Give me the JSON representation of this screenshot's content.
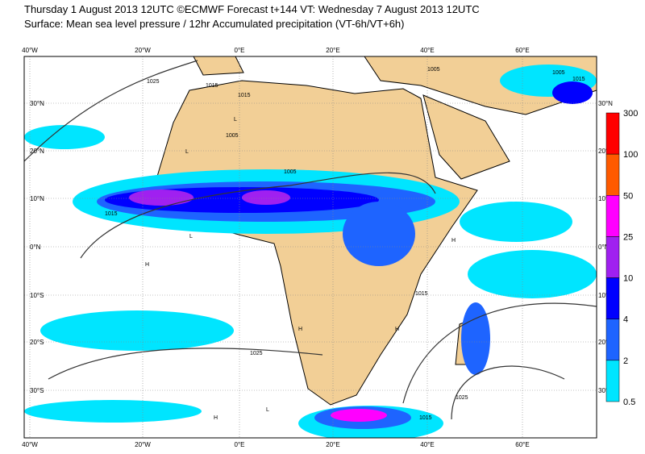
{
  "header": {
    "line1": "Thursday 1 August 2013 12UTC ©ECMWF Forecast t+144 VT: Wednesday 7 August 2013 12UTC",
    "line2": "Surface: Mean sea level pressure / 12hr Accumulated precipitation (VT-6h/VT+6h)"
  },
  "map": {
    "longitude_labels": [
      "40°W",
      "20°W",
      "0°E",
      "20°E",
      "40°E",
      "60°E"
    ],
    "latitude_labels": [
      "30°N",
      "20°N",
      "10°N",
      "0°N",
      "10°S",
      "20°S",
      "30°S"
    ],
    "isobar_labels": [
      "1025",
      "1015",
      "1015",
      "1005",
      "1005",
      "1005",
      "1005",
      "1015",
      "1015",
      "1025",
      "1015",
      "1015",
      "1025"
    ],
    "pressure_centers": [
      "H",
      "H",
      "H",
      "L",
      "L",
      "L",
      "H",
      "H",
      "L"
    ]
  },
  "colorbar": {
    "labels": [
      "300",
      "100",
      "50",
      "25",
      "10",
      "4",
      "2",
      "0.5"
    ],
    "colors": [
      "#ff0000",
      "#ff5a00",
      "#ff00ff",
      "#a020f0",
      "#0000ff",
      "#1e64ff",
      "#00e5ff"
    ]
  }
}
